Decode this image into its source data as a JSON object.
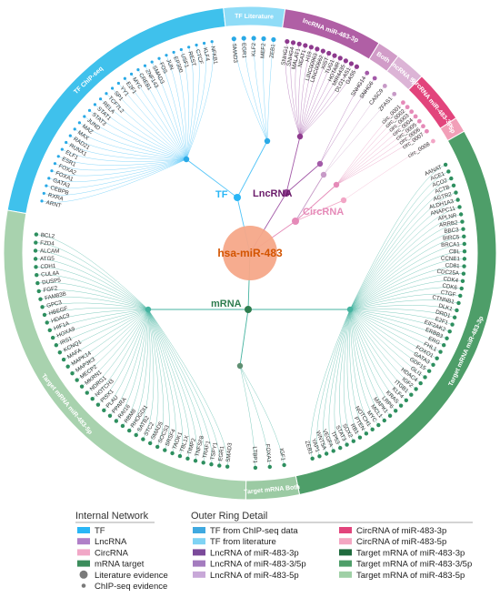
{
  "center": {
    "label": "hsa-miR-483",
    "color": "#f4a582",
    "text_color": "#d95f02"
  },
  "hubs": {
    "tf": {
      "label": "TF",
      "color": "#29b6f6"
    },
    "lncrna": {
      "label": "LncRNA",
      "color": "#8e3a8e"
    },
    "circrna": {
      "label": "CircRNA",
      "color": "#e58ab8"
    },
    "mrna": {
      "label": "mRNA",
      "color": "#2e7d4f"
    }
  },
  "ring_segments": [
    {
      "label": "TF ChIP-seq",
      "color": "#3fc1ec",
      "frac": 0.205
    },
    {
      "label": "TF Literature",
      "color": "#8fdcf7",
      "frac": 0.04
    },
    {
      "label": "lncRNA miR-483-3p",
      "color": "#b05fa5",
      "frac": 0.065
    },
    {
      "label": "Both",
      "color": "#d19cc8",
      "frac": 0.015
    },
    {
      "label": "lncRNA 5p",
      "color": "#dcb4d6",
      "frac": 0.02
    },
    {
      "label": "circRNA miR-483-3p",
      "color": "#e2447c",
      "frac": 0.035
    },
    {
      "label": "5p",
      "color": "#f29fb8",
      "frac": 0.01
    },
    {
      "label": "Target mRNA miR-483-3p",
      "color": "#4e9e69",
      "frac": 0.3
    },
    {
      "label": "Target mRNA Both",
      "color": "#9bcaa3",
      "frac": 0.035
    },
    {
      "label": "Target mRNA miR-483-5p",
      "color": "#a8d2ae",
      "frac": 0.275
    }
  ],
  "genes": {
    "tf": [
      "ARNT",
      "RXRA",
      "CEBPB",
      "GATA3",
      "FOXA1",
      "FOXA2",
      "ESR1",
      "ELF1",
      "RUNX1",
      "RAD21",
      "MAX",
      "MAZ",
      "JUND",
      "STAT3",
      "STAT1",
      "RELA",
      "TCF7L2",
      "SP1",
      "YY1",
      "E2F1",
      "MYC",
      "CREB1",
      "ZNF143",
      "SMAD3",
      "FOS",
      "JUN",
      "EP300",
      "USF1",
      "REST",
      "CTCF",
      "KLF4",
      "NFKB1"
    ],
    "tf_lit": [
      "SMAD3",
      "EGR1",
      "KLF2",
      "MEF2",
      "ZEB1"
    ],
    "lnc": [
      "SNHG1",
      "SNHG4",
      "MALAT1",
      "NEAT1",
      "H19",
      "LINC00963",
      "LINC00662",
      "XIST",
      "TUG1",
      "HOTAIR",
      "MIR4435",
      "DLG1-AS1",
      "GAS5"
    ],
    "lnc_both": [
      "SNHG14",
      "SNHG6"
    ],
    "lnc_5p": [
      "CASC9",
      "ZFAS1"
    ],
    "circ": [
      "circ_0001",
      "circ_0002",
      "circ_0003",
      "circ_0004",
      "circ_0005",
      "circ_0006",
      "circ_0007"
    ],
    "circ_5p": [
      "circ_0008"
    ],
    "mrna3p": [
      "AANAT",
      "ACE1",
      "ACO2",
      "ACTB",
      "AGTR2",
      "ALDH1A3",
      "ANAPC11",
      "APLNR",
      "ARRB2",
      "BBC3",
      "BIRC5",
      "BRCA1",
      "CBL",
      "CCNE1",
      "CD81",
      "CDC25A",
      "CDK4",
      "CDK6",
      "CTGF",
      "CTNNB1",
      "DLK1",
      "DRD1",
      "E2F1",
      "EIF2AK2",
      "ERBB3",
      "ERG",
      "FHL1",
      "FOXO1",
      "GATA3",
      "GDF15",
      "GLI1",
      "HDAC4",
      "IGF2",
      "ITGB1",
      "KLF4",
      "KRAS",
      "LRP6",
      "MAPK1",
      "MCL1",
      "MYC",
      "NOTCH1",
      "PTEN",
      "RB1",
      "SOX2",
      "STAT3",
      "TP53",
      "VEGFA",
      "WNT5A",
      "YAP1",
      "ZEB1"
    ],
    "mrna_both": [
      "IGF1",
      "FOXA1",
      "LTBP1"
    ],
    "mrna5p": [
      "SMAD3",
      "EGR1",
      "TSPY1",
      "TRAF1",
      "TNFSF8",
      "TIMP2",
      "TBL1X",
      "TAOK1",
      "SRSF4",
      "SOCS3",
      "SMAD5",
      "STC2",
      "SATB2",
      "RHOGDI1",
      "RBM8",
      "RAI16",
      "PPARA",
      "PLAU",
      "PISX1",
      "NOTCH3",
      "NDRG1",
      "MKRN1",
      "MECP2",
      "MAP3K3",
      "MAPK14",
      "MAFA",
      "KCNQ1",
      "IRS1",
      "HOXA9",
      "HIF1A",
      "HDAC9",
      "HBEGF",
      "GPC3",
      "FAM83B",
      "FGF2",
      "DUSP5",
      "CUL4A",
      "CDH1",
      "ATG5",
      "ALCAM",
      "FZD4",
      "BCL2"
    ]
  },
  "legend": {
    "internal": {
      "title": "Internal Network",
      "items": [
        {
          "label": "TF",
          "color": "#29b6f6",
          "shape": "rect"
        },
        {
          "label": "LncRNA",
          "color": "#b07fc8",
          "shape": "rect"
        },
        {
          "label": "CircRNA",
          "color": "#f1a7c7",
          "shape": "rect"
        },
        {
          "label": "mRNA target",
          "color": "#3c8d5c",
          "shape": "rect"
        },
        {
          "label": "Literature evidence",
          "color": "#7a7a7a",
          "shape": "big-dot"
        },
        {
          "label": "ChIP-seq evidence",
          "color": "#7a7a7a",
          "shape": "small-dot"
        }
      ]
    },
    "outer": {
      "title": "Outer Ring Detail",
      "col1": [
        {
          "label": "TF from ChIP-seq data",
          "color": "#3fa9e0"
        },
        {
          "label": "TF from literature",
          "color": "#7fd3f4"
        },
        {
          "label": "LncRNA of miR-483-3p",
          "color": "#7b4a9a"
        },
        {
          "label": "LncRNA of miR-483-3/5p",
          "color": "#a47cbf"
        },
        {
          "label": "LncRNA of miR-483-5p",
          "color": "#c8a8d8"
        }
      ],
      "col2": [
        {
          "label": "CircRNA of miR-483-3p",
          "color": "#e2447c"
        },
        {
          "label": "CircRNA of miR-483-5p",
          "color": "#f4a6c2"
        },
        {
          "label": "Target mRNA of miR-483-3p",
          "color": "#1f6b3e"
        },
        {
          "label": "Target mRNA of miR-483-3/5p",
          "color": "#4e9e69"
        },
        {
          "label": "Target mRNA of miR-483-5p",
          "color": "#9fd0a6"
        }
      ]
    }
  }
}
